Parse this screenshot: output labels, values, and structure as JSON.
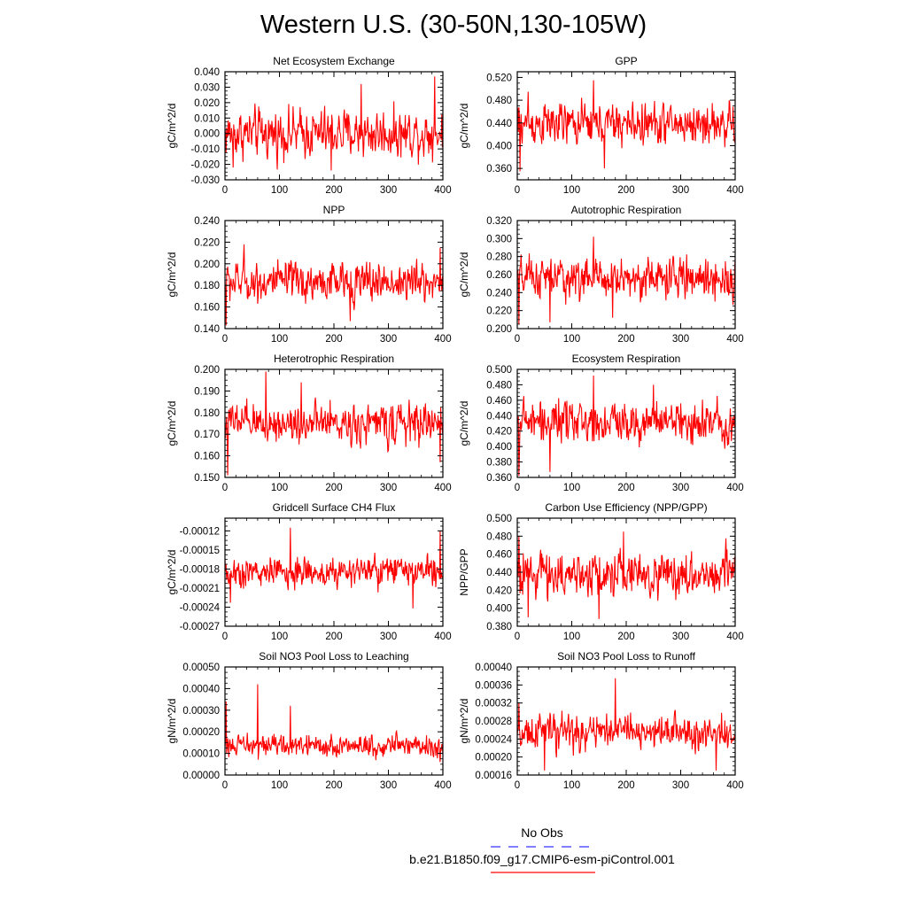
{
  "title": "Western U.S. (30-50N,130-105W)",
  "legend": {
    "obs_label": "No Obs",
    "obs_color": "#3333ff",
    "model_label": "b.e21.B1850.f09_g17.CMIP6-esm-piControl.001",
    "model_color": "#ff0000"
  },
  "chart_data": [
    {
      "type": "line",
      "title": "Net Ecosystem Exchange",
      "ylabel": "gC/m^2/d",
      "xlim": [
        0,
        400
      ],
      "ylim": [
        -0.03,
        0.04
      ],
      "xticks": [
        "0",
        "100",
        "200",
        "300",
        "400"
      ],
      "yticks": [
        "-0.030",
        "-0.020",
        "-0.010",
        "0.000",
        "0.010",
        "0.020",
        "0.030",
        "0.040"
      ],
      "series": [
        {
          "color": "#ff0000",
          "mean": 0.0,
          "amplitude": 0.011,
          "min": -0.024,
          "max": 0.037,
          "points": 400,
          "peaks": [
            {
              "x": 385,
              "y": 0.037
            },
            {
              "x": 195,
              "y": -0.024
            },
            {
              "x": 250,
              "y": 0.032
            },
            {
              "x": 15,
              "y": -0.022
            }
          ]
        }
      ]
    },
    {
      "type": "line",
      "title": "GPP",
      "ylabel": "gC/m^2/d",
      "xlim": [
        0,
        400
      ],
      "ylim": [
        0.34,
        0.53
      ],
      "xticks": [
        "0",
        "100",
        "200",
        "300",
        "400"
      ],
      "yticks": [
        "0.360",
        "0.400",
        "0.440",
        "0.480",
        "0.520"
      ],
      "series": [
        {
          "color": "#ff0000",
          "mean": 0.438,
          "amplitude": 0.026,
          "min": 0.35,
          "max": 0.515,
          "points": 400,
          "peaks": [
            {
              "x": 140,
              "y": 0.515
            },
            {
              "x": 5,
              "y": 0.355
            },
            {
              "x": 20,
              "y": 0.495
            },
            {
              "x": 160,
              "y": 0.36
            }
          ]
        }
      ]
    },
    {
      "type": "line",
      "title": "NPP",
      "ylabel": "gC/m^2/d",
      "xlim": [
        0,
        400
      ],
      "ylim": [
        0.14,
        0.24
      ],
      "xticks": [
        "0",
        "100",
        "200",
        "300",
        "400"
      ],
      "yticks": [
        "0.140",
        "0.160",
        "0.180",
        "0.200",
        "0.220",
        "0.240"
      ],
      "series": [
        {
          "color": "#ff0000",
          "mean": 0.183,
          "amplitude": 0.013,
          "min": 0.143,
          "max": 0.218,
          "points": 400,
          "peaks": [
            {
              "x": 2,
              "y": 0.143
            },
            {
              "x": 35,
              "y": 0.218
            },
            {
              "x": 230,
              "y": 0.147
            },
            {
              "x": 395,
              "y": 0.215
            }
          ]
        }
      ]
    },
    {
      "type": "line",
      "title": "Autotrophic Respiration",
      "ylabel": "gC/m^2/d",
      "xlim": [
        0,
        400
      ],
      "ylim": [
        0.2,
        0.32
      ],
      "xticks": [
        "0",
        "100",
        "200",
        "300",
        "400"
      ],
      "yticks": [
        "0.200",
        "0.220",
        "0.240",
        "0.260",
        "0.280",
        "0.300",
        "0.320"
      ],
      "series": [
        {
          "color": "#ff0000",
          "mean": 0.256,
          "amplitude": 0.016,
          "min": 0.205,
          "max": 0.302,
          "points": 400,
          "peaks": [
            {
              "x": 140,
              "y": 0.302
            },
            {
              "x": 3,
              "y": 0.205
            },
            {
              "x": 60,
              "y": 0.207
            },
            {
              "x": 175,
              "y": 0.212
            }
          ]
        }
      ]
    },
    {
      "type": "line",
      "title": "Heterotrophic Respiration",
      "ylabel": "gC/m^2/d",
      "xlim": [
        0,
        400
      ],
      "ylim": [
        0.15,
        0.2
      ],
      "xticks": [
        "0",
        "100",
        "200",
        "300",
        "400"
      ],
      "yticks": [
        "0.150",
        "0.160",
        "0.170",
        "0.180",
        "0.190",
        "0.200"
      ],
      "series": [
        {
          "color": "#ff0000",
          "mean": 0.175,
          "amplitude": 0.0065,
          "min": 0.151,
          "max": 0.199,
          "points": 400,
          "peaks": [
            {
              "x": 75,
              "y": 0.199
            },
            {
              "x": 5,
              "y": 0.151
            },
            {
              "x": 140,
              "y": 0.194
            },
            {
              "x": 395,
              "y": 0.157
            }
          ]
        }
      ]
    },
    {
      "type": "line",
      "title": "Ecosystem Respiration",
      "ylabel": "gC/m^2/d",
      "xlim": [
        0,
        400
      ],
      "ylim": [
        0.36,
        0.5
      ],
      "xticks": [
        "0",
        "100",
        "200",
        "300",
        "400"
      ],
      "yticks": [
        "0.360",
        "0.380",
        "0.400",
        "0.420",
        "0.440",
        "0.460",
        "0.480",
        "0.500"
      ],
      "series": [
        {
          "color": "#ff0000",
          "mean": 0.432,
          "amplitude": 0.019,
          "min": 0.362,
          "max": 0.492,
          "points": 400,
          "peaks": [
            {
              "x": 140,
              "y": 0.492
            },
            {
              "x": 3,
              "y": 0.362
            },
            {
              "x": 60,
              "y": 0.367
            },
            {
              "x": 250,
              "y": 0.48
            }
          ]
        }
      ]
    },
    {
      "type": "line",
      "title": "Gridcell Surface CH4 Flux",
      "ylabel": "gC/m^2/d",
      "xlim": [
        0,
        400
      ],
      "ylim": [
        -0.00027,
        -0.0001
      ],
      "xticks": [
        "0",
        "100",
        "200",
        "300",
        "400"
      ],
      "yticks": [
        "-0.00027",
        "-0.00024",
        "-0.00021",
        "-0.00018",
        "-0.00015",
        "-0.00012"
      ],
      "series": [
        {
          "color": "#ff0000",
          "mean": -0.000185,
          "amplitude": 1.7e-05,
          "min": -0.000245,
          "max": -0.000115,
          "points": 400,
          "peaks": [
            {
              "x": 120,
              "y": -0.000115
            },
            {
              "x": 10,
              "y": -0.000233
            },
            {
              "x": 345,
              "y": -0.000242
            },
            {
              "x": 395,
              "y": -0.00012
            }
          ]
        }
      ]
    },
    {
      "type": "line",
      "title": "Carbon Use Efficiency (NPP/GPP)",
      "ylabel": "NPP/GPP",
      "xlim": [
        0,
        400
      ],
      "ylim": [
        0.38,
        0.5
      ],
      "xticks": [
        "0",
        "100",
        "200",
        "300",
        "400"
      ],
      "yticks": [
        "0.380",
        "0.400",
        "0.420",
        "0.440",
        "0.460",
        "0.480",
        "0.500"
      ],
      "series": [
        {
          "color": "#ff0000",
          "mean": 0.438,
          "amplitude": 0.017,
          "min": 0.388,
          "max": 0.485,
          "points": 400,
          "peaks": [
            {
              "x": 3,
              "y": 0.48
            },
            {
              "x": 195,
              "y": 0.485
            },
            {
              "x": 150,
              "y": 0.388
            },
            {
              "x": 20,
              "y": 0.39
            }
          ]
        }
      ]
    },
    {
      "type": "line",
      "title": "Soil NO3 Pool Loss to Leaching",
      "ylabel": "gN/m^2/d",
      "xlim": [
        0,
        400
      ],
      "ylim": [
        0,
        0.0005
      ],
      "xticks": [
        "0",
        "100",
        "200",
        "300",
        "400"
      ],
      "yticks": [
        "0.00000",
        "0.00010",
        "0.00020",
        "0.00030",
        "0.00040",
        "0.00050"
      ],
      "series": [
        {
          "color": "#ff0000",
          "mean": 0.000135,
          "amplitude": 3.5e-05,
          "min": 5e-05,
          "max": 0.00042,
          "points": 400,
          "peaks": [
            {
              "x": 60,
              "y": 0.00042
            },
            {
              "x": 2,
              "y": 0.00034
            },
            {
              "x": 120,
              "y": 0.00032
            },
            {
              "x": 395,
              "y": 6e-05
            }
          ]
        }
      ]
    },
    {
      "type": "line",
      "title": "Soil NO3 Pool Loss to Runoff",
      "ylabel": "gN/m^2/d",
      "xlim": [
        0,
        400
      ],
      "ylim": [
        0.00016,
        0.0004
      ],
      "xticks": [
        "0",
        "100",
        "200",
        "300",
        "400"
      ],
      "yticks": [
        "0.00016",
        "0.00020",
        "0.00024",
        "0.00028",
        "0.00032",
        "0.00036",
        "0.00040"
      ],
      "series": [
        {
          "color": "#ff0000",
          "mean": 0.000255,
          "amplitude": 2.7e-05,
          "min": 0.00017,
          "max": 0.000375,
          "points": 400,
          "peaks": [
            {
              "x": 180,
              "y": 0.000375
            },
            {
              "x": 50,
              "y": 0.00017
            },
            {
              "x": 365,
              "y": 0.00017
            },
            {
              "x": 3,
              "y": 0.00032
            }
          ]
        }
      ]
    }
  ]
}
